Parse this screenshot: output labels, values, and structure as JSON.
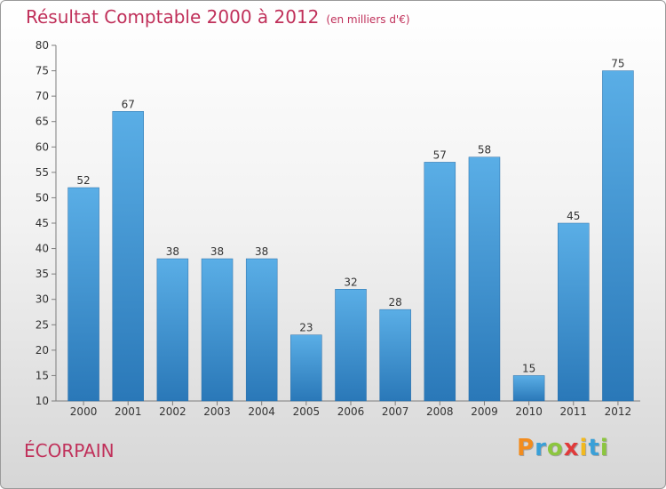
{
  "title": "Résultat Comptable 2000 à 2012",
  "unit_note": "(en milliers d'€)",
  "town": "ÉCORPAIN",
  "logo": {
    "letters": [
      "P",
      "r",
      "o",
      "x",
      "i",
      "t",
      "i"
    ],
    "colors": [
      "#f28c1e",
      "#3aa0d8",
      "#8cc63f",
      "#e03a3a",
      "#f2b91e",
      "#3aa0d8",
      "#8cc63f"
    ]
  },
  "colors": {
    "accent": "#c0305a",
    "bar_top": "#5aaee6",
    "bar_bottom": "#2a78b8"
  },
  "chart_data": {
    "type": "bar",
    "title": "Résultat Comptable 2000 à 2012",
    "xlabel": "",
    "ylabel": "",
    "categories": [
      "2000",
      "2001",
      "2002",
      "2003",
      "2004",
      "2005",
      "2006",
      "2007",
      "2008",
      "2009",
      "2010",
      "2011",
      "2012"
    ],
    "values": [
      52,
      67,
      38,
      38,
      38,
      23,
      32,
      28,
      57,
      58,
      15,
      45,
      75
    ],
    "data_labels": [
      "52",
      "67",
      "38",
      "38",
      "38",
      "23",
      "32",
      "28",
      "57",
      "58",
      "15",
      "45",
      "75"
    ],
    "ylim": [
      10,
      80
    ],
    "yticks": [
      10,
      15,
      20,
      25,
      30,
      35,
      40,
      45,
      50,
      55,
      60,
      65,
      70,
      75,
      80
    ],
    "ytick_labels": [
      "10",
      "15",
      "20",
      "25",
      "30",
      "35",
      "40",
      "45",
      "50",
      "55",
      "60",
      "65",
      "70",
      "75",
      "80"
    ],
    "grid": false,
    "legend": "none"
  }
}
